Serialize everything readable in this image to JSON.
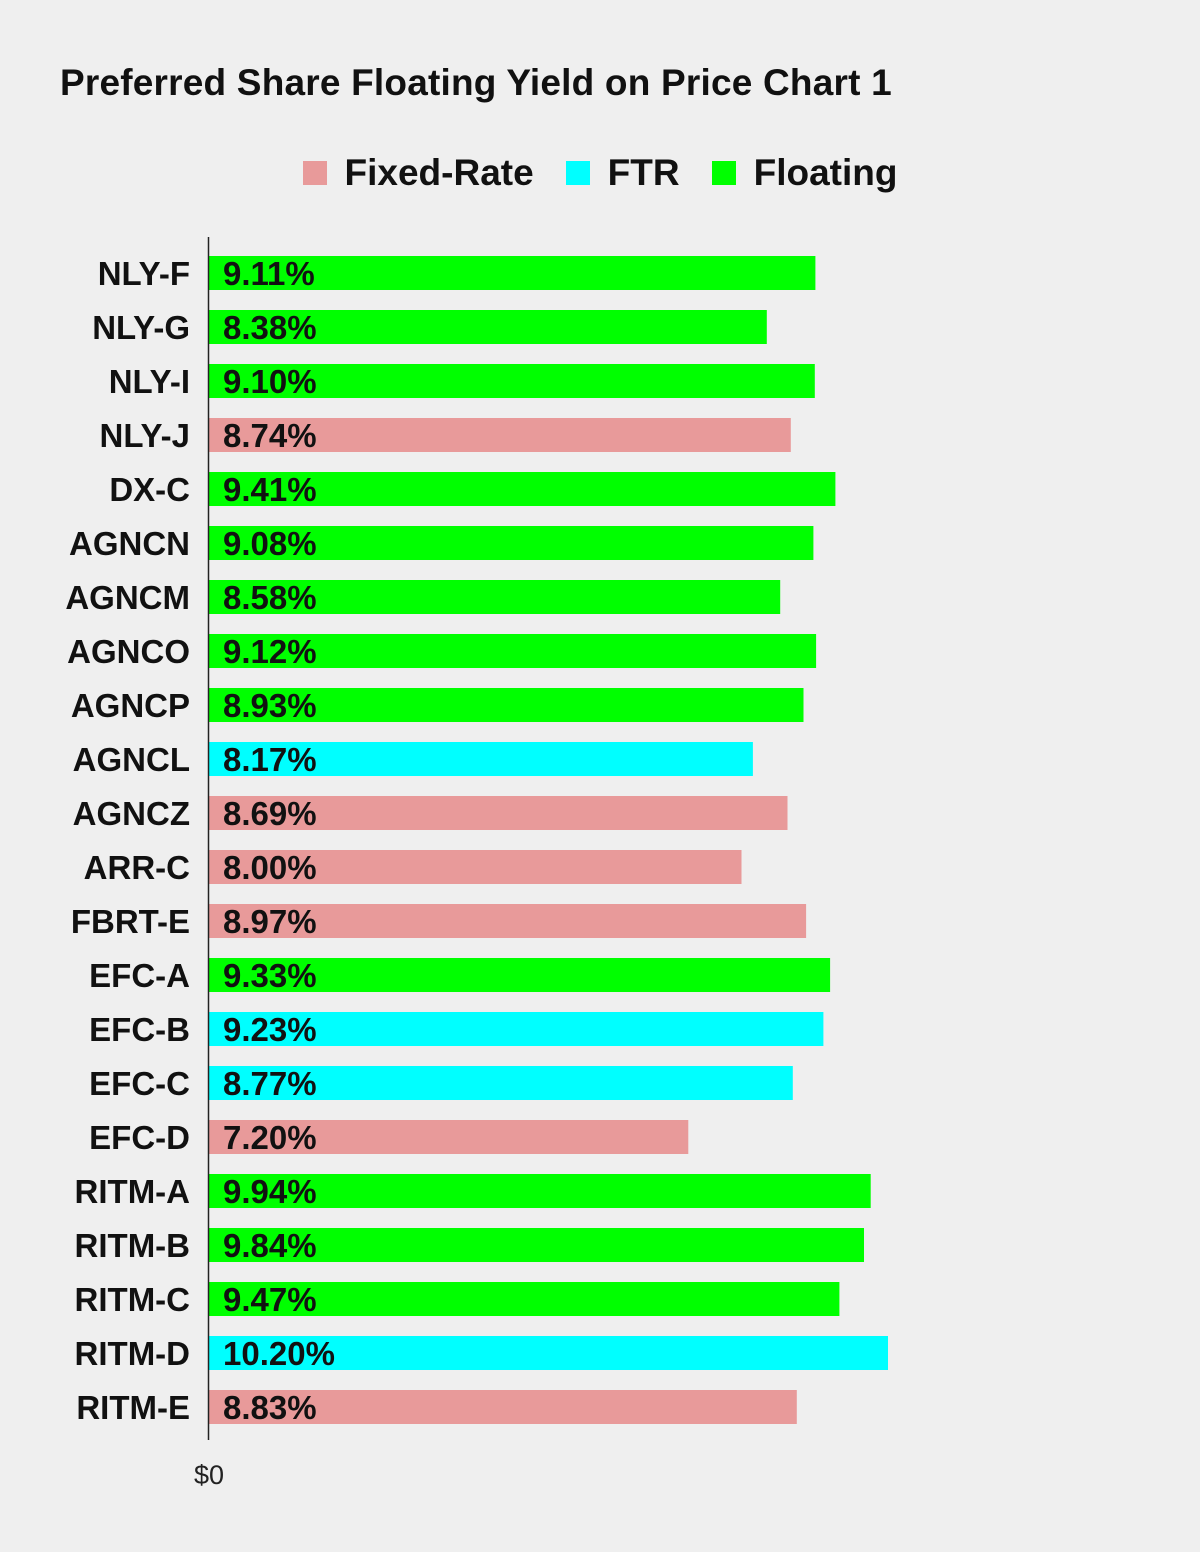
{
  "chart_data": {
    "type": "bar",
    "orientation": "horizontal",
    "title": "Preferred Share Floating Yield on Price Chart 1",
    "xlabel": "",
    "ylabel": "",
    "x_tick_labels": [
      "$0"
    ],
    "xlim": [
      0,
      10.2
    ],
    "grid": false,
    "legend_position": "top",
    "legend": [
      {
        "name": "Fixed-Rate",
        "color": "#e89a9a"
      },
      {
        "name": "FTR",
        "color": "#00ffff"
      },
      {
        "name": "Floating",
        "color": "#00ff00"
      }
    ],
    "categories": [
      "NLY-F",
      "NLY-G",
      "NLY-I",
      "NLY-J",
      "DX-C",
      "AGNCN",
      "AGNCM",
      "AGNCO",
      "AGNCP",
      "AGNCL",
      "AGNCZ",
      "ARR-C",
      "FBRT-E",
      "EFC-A",
      "EFC-B",
      "EFC-C",
      "EFC-D",
      "RITM-A",
      "RITM-B",
      "RITM-C",
      "RITM-D",
      "RITM-E"
    ],
    "values": [
      9.11,
      8.38,
      9.1,
      8.74,
      9.41,
      9.08,
      8.58,
      9.12,
      8.93,
      8.17,
      8.69,
      8.0,
      8.97,
      9.33,
      9.23,
      8.77,
      7.2,
      9.94,
      9.84,
      9.47,
      10.2,
      8.83
    ],
    "value_labels": [
      "9.11%",
      "8.38%",
      "9.10%",
      "8.74%",
      "9.41%",
      "9.08%",
      "8.58%",
      "9.12%",
      "8.93%",
      "8.17%",
      "8.69%",
      "8.00%",
      "8.97%",
      "9.33%",
      "9.23%",
      "8.77%",
      "7.20%",
      "9.94%",
      "9.84%",
      "9.47%",
      "10.20%",
      "8.83%"
    ],
    "bar_types": [
      "Floating",
      "Floating",
      "Floating",
      "Fixed-Rate",
      "Floating",
      "Floating",
      "Floating",
      "Floating",
      "Floating",
      "FTR",
      "Fixed-Rate",
      "Fixed-Rate",
      "Fixed-Rate",
      "Floating",
      "FTR",
      "FTR",
      "Fixed-Rate",
      "Floating",
      "Floating",
      "Floating",
      "FTR",
      "Fixed-Rate"
    ]
  }
}
